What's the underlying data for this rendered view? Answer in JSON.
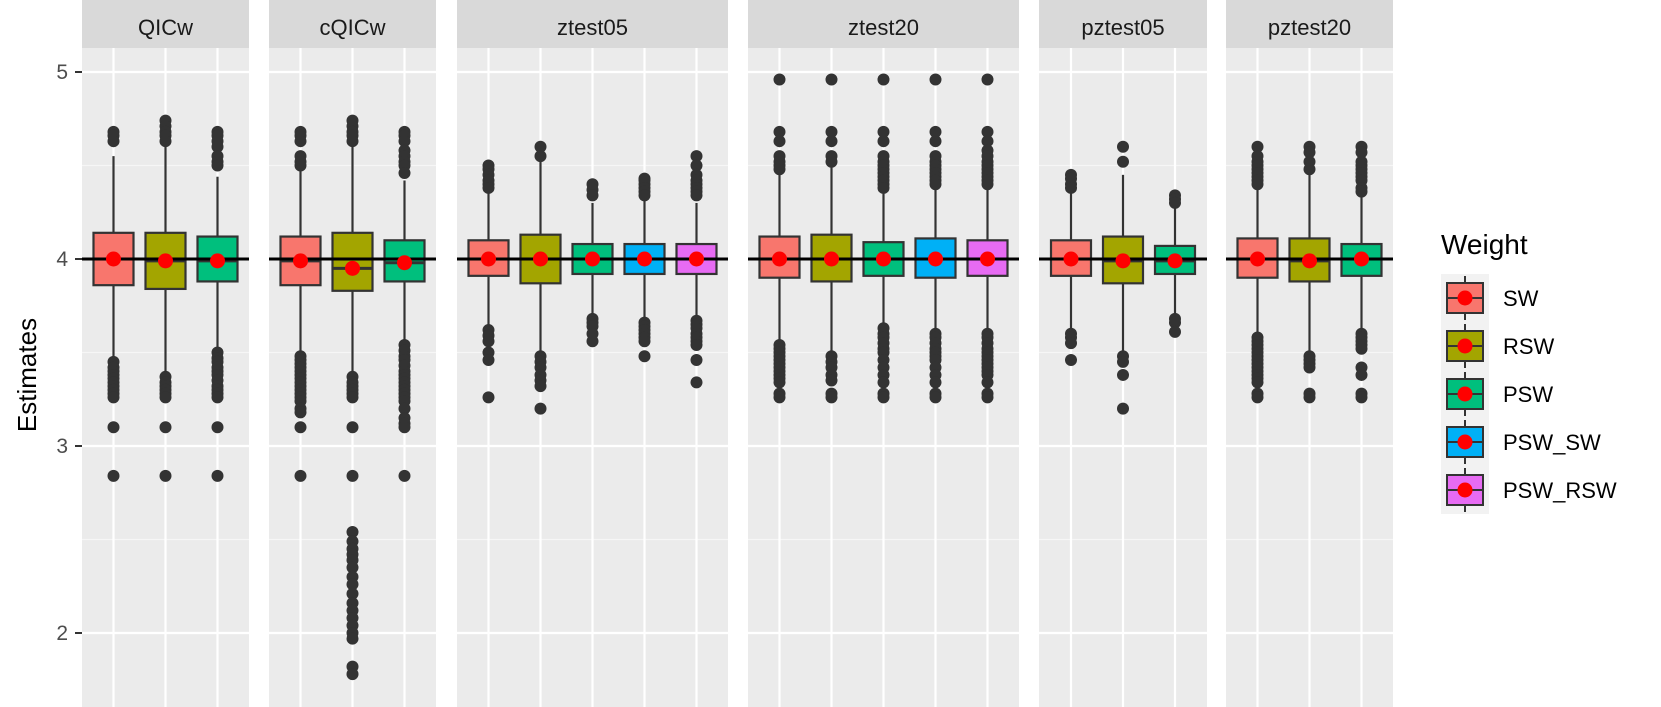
{
  "chart_data": {
    "type": "boxplot",
    "ylabel": "Estimates",
    "ylim": [
      1.75,
      5.3
    ],
    "yticks": [
      2,
      3,
      4,
      5
    ],
    "reference_line": 4,
    "grid": true,
    "legend": {
      "title": "Weight",
      "placement": "right",
      "entries": [
        "SW",
        "RSW",
        "PSW",
        "PSW_SW",
        "PSW_RSW"
      ]
    },
    "series_colors": {
      "SW": "#F8766D",
      "RSW": "#A3A500",
      "PSW": "#00BF7D",
      "PSW_SW": "#00B0F6",
      "PSW_RSW": "#E76BF3"
    },
    "mean_point_color": "#FF0000",
    "panels": [
      {
        "label": "QICw",
        "boxes": [
          {
            "weight": "SW",
            "q1": 3.86,
            "median": 4.0,
            "q3": 4.14,
            "whisker_low": 3.47,
            "whisker_high": 4.55,
            "mean": 4.0,
            "outliers": [
              4.68,
              4.66,
              4.63,
              3.45,
              3.42,
              3.4,
              3.38,
              3.36,
              3.34,
              3.32,
              3.3,
              3.28,
              3.26,
              3.1,
              2.84
            ]
          },
          {
            "weight": "RSW",
            "q1": 3.84,
            "median": 3.99,
            "q3": 4.14,
            "whisker_low": 3.39,
            "whisker_high": 4.6,
            "mean": 3.99,
            "outliers": [
              4.74,
              4.71,
              4.68,
              4.66,
              4.63,
              3.37,
              3.34,
              3.32,
              3.3,
              3.28,
              3.26,
              3.1,
              2.84
            ]
          },
          {
            "weight": "PSW",
            "q1": 3.88,
            "median": 3.99,
            "q3": 4.12,
            "whisker_low": 3.53,
            "whisker_high": 4.44,
            "mean": 3.99,
            "outliers": [
              4.68,
              4.66,
              4.63,
              4.6,
              4.55,
              4.52,
              4.5,
              3.5,
              3.47,
              3.45,
              3.42,
              3.4,
              3.38,
              3.35,
              3.32,
              3.3,
              3.28,
              3.26,
              3.1,
              2.84
            ]
          }
        ]
      },
      {
        "label": "cQICw",
        "boxes": [
          {
            "weight": "SW",
            "q1": 3.86,
            "median": 3.99,
            "q3": 4.12,
            "whisker_low": 3.5,
            "whisker_high": 4.5,
            "mean": 3.99,
            "outliers": [
              4.68,
              4.66,
              4.63,
              4.55,
              4.52,
              4.5,
              3.48,
              3.46,
              3.44,
              3.42,
              3.4,
              3.38,
              3.36,
              3.34,
              3.32,
              3.3,
              3.28,
              3.26,
              3.24,
              3.2,
              3.18,
              3.1,
              2.84
            ]
          },
          {
            "weight": "RSW",
            "q1": 3.83,
            "median": 3.95,
            "q3": 4.14,
            "whisker_low": 3.39,
            "whisker_high": 4.62,
            "mean": 3.95,
            "outliers": [
              4.74,
              4.71,
              4.68,
              4.66,
              4.63,
              3.37,
              3.34,
              3.32,
              3.3,
              3.28,
              3.26,
              3.1,
              2.84,
              2.54,
              2.49,
              2.45,
              2.42,
              2.39,
              2.35,
              2.3,
              2.26,
              2.21,
              2.16,
              2.12,
              2.08,
              2.04,
              2.0,
              1.97,
              1.82,
              1.78
            ]
          },
          {
            "weight": "PSW",
            "q1": 3.88,
            "median": 3.98,
            "q3": 4.1,
            "whisker_low": 3.56,
            "whisker_high": 4.42,
            "mean": 3.98,
            "outliers": [
              4.68,
              4.66,
              4.63,
              4.58,
              4.55,
              4.52,
              4.5,
              4.46,
              3.54,
              3.51,
              3.48,
              3.46,
              3.43,
              3.4,
              3.38,
              3.36,
              3.34,
              3.32,
              3.3,
              3.28,
              3.26,
              3.24,
              3.2,
              3.15,
              3.12,
              3.1,
              2.84
            ]
          }
        ]
      },
      {
        "label": "ztest05",
        "boxes": [
          {
            "weight": "SW",
            "q1": 3.91,
            "median": 4.0,
            "q3": 4.1,
            "whisker_low": 3.64,
            "whisker_high": 4.36,
            "mean": 4.0,
            "outliers": [
              4.5,
              4.48,
              4.45,
              4.42,
              4.4,
              4.38,
              3.62,
              3.59,
              3.56,
              3.5,
              3.46,
              3.26
            ]
          },
          {
            "weight": "RSW",
            "q1": 3.87,
            "median": 4.0,
            "q3": 4.13,
            "whisker_low": 3.5,
            "whisker_high": 4.52,
            "mean": 4.0,
            "outliers": [
              4.6,
              4.55,
              3.48,
              3.45,
              3.42,
              3.38,
              3.35,
              3.32,
              3.2
            ]
          },
          {
            "weight": "PSW",
            "q1": 3.92,
            "median": 4.0,
            "q3": 4.08,
            "whisker_low": 3.69,
            "whisker_high": 4.3,
            "mean": 4.0,
            "outliers": [
              4.4,
              4.37,
              4.34,
              3.68,
              3.66,
              3.64,
              3.6,
              3.56
            ]
          },
          {
            "weight": "PSW_SW",
            "q1": 3.92,
            "median": 4.0,
            "q3": 4.08,
            "whisker_low": 3.67,
            "whisker_high": 4.33,
            "mean": 4.0,
            "outliers": [
              4.43,
              4.42,
              4.4,
              4.38,
              4.36,
              4.34,
              3.66,
              3.64,
              3.62,
              3.6,
              3.58,
              3.56,
              3.48
            ]
          },
          {
            "weight": "PSW_RSW",
            "q1": 3.92,
            "median": 4.0,
            "q3": 4.08,
            "whisker_low": 3.68,
            "whisker_high": 4.3,
            "mean": 4.0,
            "outliers": [
              4.55,
              4.5,
              4.45,
              4.42,
              4.4,
              4.38,
              4.36,
              4.34,
              3.67,
              3.65,
              3.63,
              3.6,
              3.58,
              3.56,
              3.54,
              3.46,
              3.34
            ]
          }
        ]
      },
      {
        "label": "ztest20",
        "boxes": [
          {
            "weight": "SW",
            "q1": 3.9,
            "median": 4.0,
            "q3": 4.12,
            "whisker_low": 3.55,
            "whisker_high": 4.47,
            "mean": 4.0,
            "outliers": [
              4.96,
              4.68,
              4.63,
              4.55,
              4.52,
              4.5,
              4.48,
              3.54,
              3.52,
              3.5,
              3.48,
              3.46,
              3.44,
              3.42,
              3.4,
              3.38,
              3.36,
              3.34,
              3.28,
              3.26
            ]
          },
          {
            "weight": "RSW",
            "q1": 3.88,
            "median": 4.0,
            "q3": 4.13,
            "whisker_low": 3.5,
            "whisker_high": 4.5,
            "mean": 4.0,
            "outliers": [
              4.96,
              4.68,
              4.63,
              4.55,
              4.52,
              3.48,
              3.45,
              3.42,
              3.38,
              3.35,
              3.28,
              3.26
            ]
          },
          {
            "weight": "PSW",
            "q1": 3.91,
            "median": 4.0,
            "q3": 4.09,
            "whisker_low": 3.65,
            "whisker_high": 4.35,
            "mean": 4.0,
            "outliers": [
              4.96,
              4.68,
              4.63,
              4.55,
              4.52,
              4.5,
              4.48,
              4.46,
              4.44,
              4.42,
              4.4,
              4.38,
              3.63,
              3.6,
              3.58,
              3.55,
              3.52,
              3.5,
              3.46,
              3.42,
              3.38,
              3.34,
              3.28,
              3.26
            ]
          },
          {
            "weight": "PSW_SW",
            "q1": 3.9,
            "median": 4.0,
            "q3": 4.11,
            "whisker_low": 3.63,
            "whisker_high": 4.38,
            "mean": 4.0,
            "outliers": [
              4.96,
              4.68,
              4.63,
              4.55,
              4.52,
              4.5,
              4.48,
              4.46,
              4.44,
              4.42,
              4.4,
              3.6,
              3.58,
              3.55,
              3.52,
              3.5,
              3.48,
              3.46,
              3.42,
              3.38,
              3.34,
              3.28,
              3.26
            ]
          },
          {
            "weight": "PSW_RSW",
            "q1": 3.91,
            "median": 4.0,
            "q3": 4.1,
            "whisker_low": 3.62,
            "whisker_high": 4.38,
            "mean": 4.0,
            "outliers": [
              4.96,
              4.68,
              4.63,
              4.58,
              4.55,
              4.52,
              4.5,
              4.48,
              4.46,
              4.44,
              4.42,
              4.4,
              3.6,
              3.58,
              3.55,
              3.52,
              3.5,
              3.48,
              3.46,
              3.44,
              3.42,
              3.4,
              3.38,
              3.34,
              3.28,
              3.26
            ]
          }
        ]
      },
      {
        "label": "pztest05",
        "boxes": [
          {
            "weight": "SW",
            "q1": 3.91,
            "median": 4.0,
            "q3": 4.1,
            "whisker_low": 3.62,
            "whisker_high": 4.36,
            "mean": 4.0,
            "outliers": [
              4.45,
              4.43,
              4.4,
              4.38,
              3.6,
              3.58,
              3.55,
              3.46
            ]
          },
          {
            "weight": "RSW",
            "q1": 3.87,
            "median": 3.99,
            "q3": 4.12,
            "whisker_low": 3.5,
            "whisker_high": 4.45,
            "mean": 3.99,
            "outliers": [
              4.6,
              4.52,
              3.48,
              3.45,
              3.38,
              3.2
            ]
          },
          {
            "weight": "PSW",
            "q1": 3.92,
            "median": 3.99,
            "q3": 4.07,
            "whisker_low": 3.7,
            "whisker_high": 4.28,
            "mean": 3.99,
            "outliers": [
              4.34,
              4.32,
              4.3,
              3.68,
              3.66,
              3.61
            ]
          }
        ]
      },
      {
        "label": "pztest20",
        "boxes": [
          {
            "weight": "SW",
            "q1": 3.9,
            "median": 4.0,
            "q3": 4.11,
            "whisker_low": 3.6,
            "whisker_high": 4.38,
            "mean": 4.0,
            "outliers": [
              4.6,
              4.55,
              4.52,
              4.5,
              4.48,
              4.46,
              4.44,
              4.42,
              4.4,
              3.58,
              3.56,
              3.54,
              3.52,
              3.5,
              3.48,
              3.46,
              3.44,
              3.42,
              3.4,
              3.38,
              3.36,
              3.34,
              3.28,
              3.26
            ]
          },
          {
            "weight": "RSW",
            "q1": 3.88,
            "median": 3.99,
            "q3": 4.11,
            "whisker_low": 3.5,
            "whisker_high": 4.45,
            "mean": 3.99,
            "outliers": [
              4.6,
              4.57,
              4.52,
              4.48,
              3.48,
              3.46,
              3.44,
              3.42,
              3.28,
              3.26
            ]
          },
          {
            "weight": "PSW",
            "q1": 3.91,
            "median": 4.0,
            "q3": 4.08,
            "whisker_low": 3.62,
            "whisker_high": 4.35,
            "mean": 4.0,
            "outliers": [
              4.6,
              4.57,
              4.52,
              4.5,
              4.48,
              4.46,
              4.44,
              4.42,
              4.38,
              4.36,
              3.6,
              3.58,
              3.56,
              3.54,
              3.52,
              3.42,
              3.38,
              3.28,
              3.26
            ]
          }
        ]
      }
    ]
  }
}
